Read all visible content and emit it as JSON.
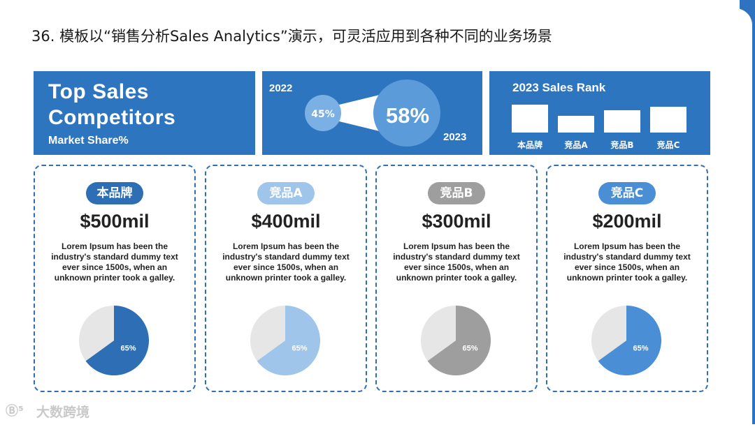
{
  "heading": "36. 模板以“销售分析Sales Analytics”演示，可灵活应用到各种不同的业务场景",
  "panel_competitors": {
    "title_line1": "Top Sales",
    "title_line2": "Competitors",
    "subtitle": "Market Share%"
  },
  "panel_growth": {
    "year_start": "2022",
    "year_end": "2023",
    "share_start": "45%",
    "share_end": "58%",
    "colors": {
      "small": "#7ab0e4",
      "big": "#5b9bd9"
    }
  },
  "panel_rank": {
    "title": "2023 Sales Rank",
    "chart_data": {
      "type": "bar",
      "title": "2023 Sales Rank",
      "categories": [
        "本品牌",
        "竞品A",
        "竞品B",
        "竞品C"
      ],
      "values": [
        4,
        2.4,
        3.2,
        3.7
      ]
    }
  },
  "cards": [
    {
      "tag": "本品牌",
      "amount": "$500mil",
      "description": "Lorem Ipsum has been the industry's standard dummy text ever since 1500s, when an unknown printer took a galley.",
      "pie_label": "65%",
      "color": "#2e6eb5"
    },
    {
      "tag": "竞品A",
      "amount": "$400mil",
      "description": "Lorem Ipsum has been the industry's standard dummy text ever since 1500s, when an unknown printer took a galley.",
      "pie_label": "65%",
      "color": "#9fc5ea"
    },
    {
      "tag": "竞品B",
      "amount": "$300mil",
      "description": "Lorem Ipsum has been the industry's standard dummy text ever since 1500s, when an unknown printer took a galley.",
      "pie_label": "65%",
      "color": "#9e9e9e"
    },
    {
      "tag": "竞品C",
      "amount": "$200mil",
      "description": "Lorem Ipsum has been the industry's standard dummy text ever since 1500s, when an unknown printer took a galley.",
      "pie_label": "65%",
      "color": "#4a8ed6"
    }
  ],
  "chart_data": [
    {
      "type": "pie",
      "title": "本品牌",
      "labels": [
        "本品牌",
        ""
      ],
      "values": [
        65,
        35
      ],
      "colors": [
        "#2e6eb5",
        "#e6e6e6"
      ]
    },
    {
      "type": "pie",
      "title": "竞品A",
      "labels": [
        "竞品A",
        ""
      ],
      "values": [
        65,
        35
      ],
      "colors": [
        "#9fc5ea",
        "#e6e6e6"
      ]
    },
    {
      "type": "pie",
      "title": "竞品B",
      "labels": [
        "竞品B",
        ""
      ],
      "values": [
        65,
        35
      ],
      "colors": [
        "#9e9e9e",
        "#e6e6e6"
      ]
    },
    {
      "type": "pie",
      "title": "竞品C",
      "labels": [
        "竞品C",
        ""
      ],
      "values": [
        65,
        35
      ],
      "colors": [
        "#4a8ed6",
        "#e6e6e6"
      ]
    }
  ],
  "watermark": {
    "name": "大数跨境",
    "mark": "Ⓑ⁵"
  }
}
